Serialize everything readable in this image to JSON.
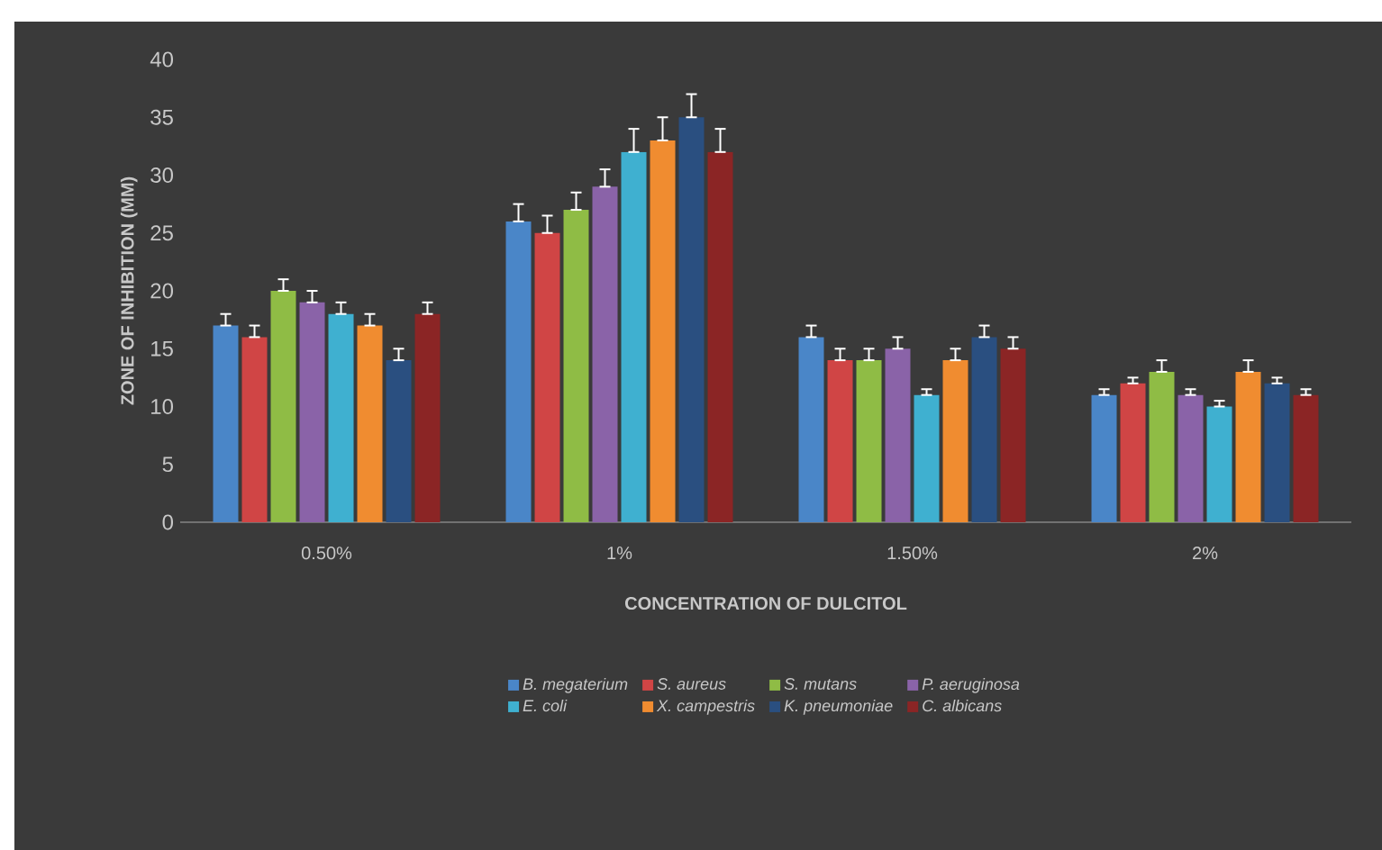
{
  "chart_data": {
    "type": "bar",
    "xlabel": "CONCENTRATION OF DULCITOL",
    "ylabel": "ZONE OF INHIBITION (MM)",
    "categories": [
      "0.50%",
      "1%",
      "1.50%",
      "2%"
    ],
    "ylim": [
      0,
      40
    ],
    "yticks": [
      0,
      5,
      10,
      15,
      20,
      25,
      30,
      35,
      40
    ],
    "legend": "bottom",
    "series": [
      {
        "name": "B. megaterium",
        "color": "#4a86c8",
        "values": [
          17,
          26,
          16,
          11
        ],
        "errors": [
          [
            17,
            18
          ],
          [
            26,
            27.5
          ],
          [
            16,
            17
          ],
          [
            11,
            11.5
          ]
        ]
      },
      {
        "name": "S. aureus",
        "color": "#d04545",
        "values": [
          16,
          25,
          14,
          12
        ],
        "errors": [
          [
            16,
            17
          ],
          [
            25,
            26.5
          ],
          [
            14,
            15
          ],
          [
            12,
            12.5
          ]
        ]
      },
      {
        "name": "S. mutans",
        "color": "#8fbc45",
        "values": [
          20,
          27,
          14,
          13
        ],
        "errors": [
          [
            20,
            21
          ],
          [
            27,
            28.5
          ],
          [
            14,
            15
          ],
          [
            13,
            14
          ]
        ]
      },
      {
        "name": "P. aeruginosa",
        "color": "#8a63a8",
        "values": [
          19,
          29,
          15,
          11
        ],
        "errors": [
          [
            19,
            20
          ],
          [
            29,
            30.5
          ],
          [
            15,
            16
          ],
          [
            11,
            11.5
          ]
        ]
      },
      {
        "name": "E. coli",
        "color": "#3fb0d0",
        "values": [
          18,
          32,
          11,
          10
        ],
        "errors": [
          [
            18,
            19
          ],
          [
            32,
            34
          ],
          [
            11,
            11.5
          ],
          [
            10,
            10.5
          ]
        ]
      },
      {
        "name": "X.  campestris",
        "color": "#f08c30",
        "values": [
          17,
          33,
          14,
          13
        ],
        "errors": [
          [
            17,
            18
          ],
          [
            33,
            35
          ],
          [
            14,
            15
          ],
          [
            13,
            14
          ]
        ]
      },
      {
        "name": "K. pneumoniae",
        "color": "#2a4f80",
        "values": [
          14,
          35,
          16,
          12
        ],
        "errors": [
          [
            14,
            15
          ],
          [
            35,
            37
          ],
          [
            16,
            17
          ],
          [
            12,
            12.5
          ]
        ]
      },
      {
        "name": "C. albicans",
        "color": "#8b2525",
        "values": [
          18,
          32,
          15,
          11
        ],
        "errors": [
          [
            18,
            19
          ],
          [
            32,
            34
          ],
          [
            15,
            16
          ],
          [
            11,
            11.5
          ]
        ]
      }
    ]
  }
}
